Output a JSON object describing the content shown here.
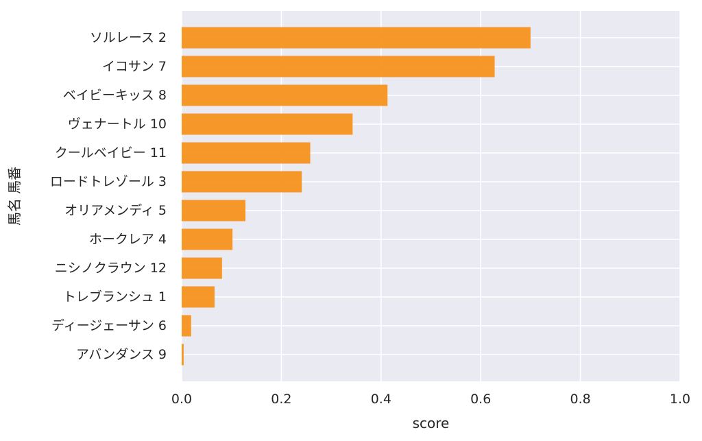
{
  "chart_data": {
    "type": "bar",
    "orientation": "horizontal",
    "categories": [
      "ソルレース 2",
      "イコサン 7",
      "ベイビーキッス 8",
      "ヴェナートル 10",
      "クールベイビー 11",
      "ロードトレゾール 3",
      "オリアメンディ 5",
      "ホークレア 4",
      "ニシノクラウン 12",
      "トレブランシュ 1",
      "ディージェーサン 6",
      "アバンダンス 9"
    ],
    "values": [
      0.7,
      0.628,
      0.413,
      0.343,
      0.258,
      0.241,
      0.128,
      0.102,
      0.081,
      0.066,
      0.019,
      0.004
    ],
    "xlabel": "score",
    "ylabel": "馬名 馬番",
    "xlim": [
      0.0,
      1.0
    ],
    "xticks": [
      "0.0",
      "0.2",
      "0.4",
      "0.6",
      "0.8",
      "1.0"
    ],
    "grid": true,
    "bar_color": "#f7941d",
    "background_color": "#eaeaf2",
    "grid_color": "#ffffff"
  }
}
